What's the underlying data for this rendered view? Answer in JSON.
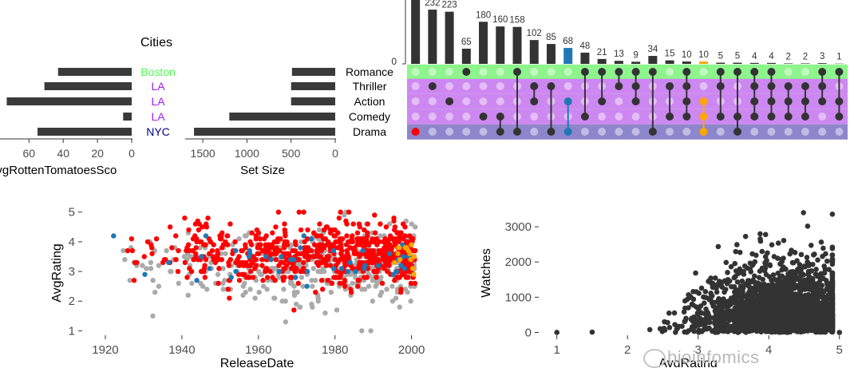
{
  "watermark": "bioinfomics",
  "chart_data": [
    {
      "id": "cities_bar",
      "type": "bar",
      "orientation": "horizontal",
      "title": "Cities",
      "xlabel": "AvgRottenTomatoesSco",
      "categories": [
        "Boston",
        "LA",
        "LA",
        "LA",
        "NYC"
      ],
      "category_colors": [
        "#4cff4c",
        "#a020f0",
        "#a020f0",
        "#a020f0",
        "#00008b"
      ],
      "values": [
        43,
        51,
        73,
        5,
        55
      ],
      "xlim": [
        0,
        76
      ],
      "xticks": [
        0,
        20,
        40,
        60
      ],
      "reversed": true
    },
    {
      "id": "set_size",
      "type": "bar",
      "orientation": "horizontal",
      "xlabel": "Set Size",
      "categories": [
        "Romance",
        "Thriller",
        "Action",
        "Comedy",
        "Drama"
      ],
      "values": [
        490,
        500,
        500,
        1200,
        1600
      ],
      "xlim": [
        0,
        1700
      ],
      "xticks": [
        0,
        500,
        1000,
        1500
      ],
      "reversed": true
    },
    {
      "id": "intersections",
      "type": "bar",
      "ylabel_tick": "0",
      "sets": [
        "Romance",
        "Thriller",
        "Action",
        "Comedy",
        "Drama"
      ],
      "row_colors": [
        "#8ef58c",
        "#cc88f0",
        "#cc88f0",
        "#cc88f0",
        "#8e86cc"
      ],
      "values": [
        280,
        232,
        223,
        65,
        180,
        160,
        158,
        102,
        85,
        68,
        48,
        21,
        13,
        9,
        34,
        15,
        10,
        10,
        5,
        5,
        4,
        4,
        2,
        2,
        3,
        1
      ],
      "labels": [
        "",
        "232",
        "223",
        "65",
        "180",
        "160",
        "158",
        "102",
        "85",
        "68",
        "48",
        "21",
        "13",
        "9",
        "34",
        "15",
        "10",
        "10",
        "5",
        "5",
        "4",
        "4",
        "2",
        "2",
        "3",
        "1"
      ],
      "bar_colors": [
        "#333333",
        "#333333",
        "#333333",
        "#333333",
        "#333333",
        "#333333",
        "#333333",
        "#333333",
        "#333333",
        "#1f78b4",
        "#333333",
        "#333333",
        "#333333",
        "#333333",
        "#333333",
        "#333333",
        "#333333",
        "#ffa500",
        "#333333",
        "#333333",
        "#333333",
        "#333333",
        "#333333",
        "#333333",
        "#333333",
        "#333333"
      ],
      "matrix": [
        {
          "rows": [
            4
          ],
          "color": "#ff0000"
        },
        {
          "rows": [
            1
          ],
          "color": "#333333"
        },
        {
          "rows": [
            2
          ],
          "color": "#333333"
        },
        {
          "rows": [
            0
          ],
          "color": "#333333"
        },
        {
          "rows": [
            3
          ],
          "color": "#333333"
        },
        {
          "rows": [
            3,
            4
          ],
          "color": "#333333"
        },
        {
          "rows": [
            0,
            4
          ],
          "color": "#333333"
        },
        {
          "rows": [
            1,
            2
          ],
          "color": "#333333"
        },
        {
          "rows": [
            1,
            4
          ],
          "color": "#333333"
        },
        {
          "rows": [
            2,
            4
          ],
          "color": "#1f78b4"
        },
        {
          "rows": [
            0,
            3
          ],
          "color": "#333333"
        },
        {
          "rows": [
            0,
            2
          ],
          "color": "#333333"
        },
        {
          "rows": [
            0,
            1
          ],
          "color": "#333333"
        },
        {
          "rows": [
            0,
            1,
            2
          ],
          "color": "#333333"
        },
        {
          "rows": [
            0,
            4
          ],
          "color": "#333333"
        },
        {
          "rows": [
            1,
            3
          ],
          "color": "#333333"
        },
        {
          "rows": [
            0,
            1,
            2,
            3
          ],
          "color": "#333333"
        },
        {
          "rows": [
            2,
            3,
            4
          ],
          "color": "#ffa500"
        },
        {
          "rows": [
            0,
            1,
            3
          ],
          "color": "#333333"
        },
        {
          "rows": [
            0,
            3,
            4
          ],
          "color": "#333333"
        },
        {
          "rows": [
            0,
            1,
            2,
            3
          ],
          "color": "#333333"
        },
        {
          "rows": [
            0,
            1,
            2,
            3
          ],
          "color": "#333333"
        },
        {
          "rows": [
            1,
            2,
            3
          ],
          "color": "#333333"
        },
        {
          "rows": [
            1,
            2,
            3
          ],
          "color": "#333333"
        },
        {
          "rows": [
            0,
            1,
            2
          ],
          "color": "#333333"
        },
        {
          "rows": [
            0,
            2,
            3
          ],
          "color": "#333333"
        }
      ]
    },
    {
      "id": "release_rating",
      "type": "scatter",
      "xlabel": "ReleaseDate",
      "ylabel": "AvgRating",
      "xlim": [
        1915,
        2003
      ],
      "ylim": [
        0.85,
        5.1
      ],
      "xticks": [
        1920,
        1940,
        1960,
        1980,
        2000
      ],
      "yticks": [
        1,
        2,
        3,
        4,
        5
      ],
      "series": [
        {
          "color": "#aaaaaa",
          "x_range": [
            1918,
            2001
          ],
          "y_center": 3.2,
          "y_spread": 1.1,
          "count": 420
        },
        {
          "color": "#ff0000",
          "x_range": [
            1918,
            2001
          ],
          "y_center": 3.6,
          "y_spread": 0.9,
          "count": 650
        },
        {
          "color": "#1f78b4",
          "x_range": [
            1918,
            2001
          ],
          "y_center": 3.4,
          "y_spread": 0.8,
          "count": 45
        },
        {
          "color": "#ffa500",
          "x_range": [
            1985,
            2001
          ],
          "y_center": 3.6,
          "y_spread": 0.5,
          "count": 14
        }
      ]
    },
    {
      "id": "rating_watches",
      "type": "scatter",
      "xlabel": "AvgRating",
      "ylabel": "Watches",
      "xlim": [
        0.8,
        5.15
      ],
      "ylim": [
        -80,
        3500
      ],
      "xticks": [
        1,
        2,
        3,
        4,
        5
      ],
      "yticks": [
        0,
        1000,
        2000,
        3000
      ],
      "series": [
        {
          "color": "#333333",
          "x_range": [
            1.0,
            5.0
          ],
          "peak_x": 4.2,
          "max_y": 3400,
          "count": 2000
        }
      ]
    }
  ]
}
